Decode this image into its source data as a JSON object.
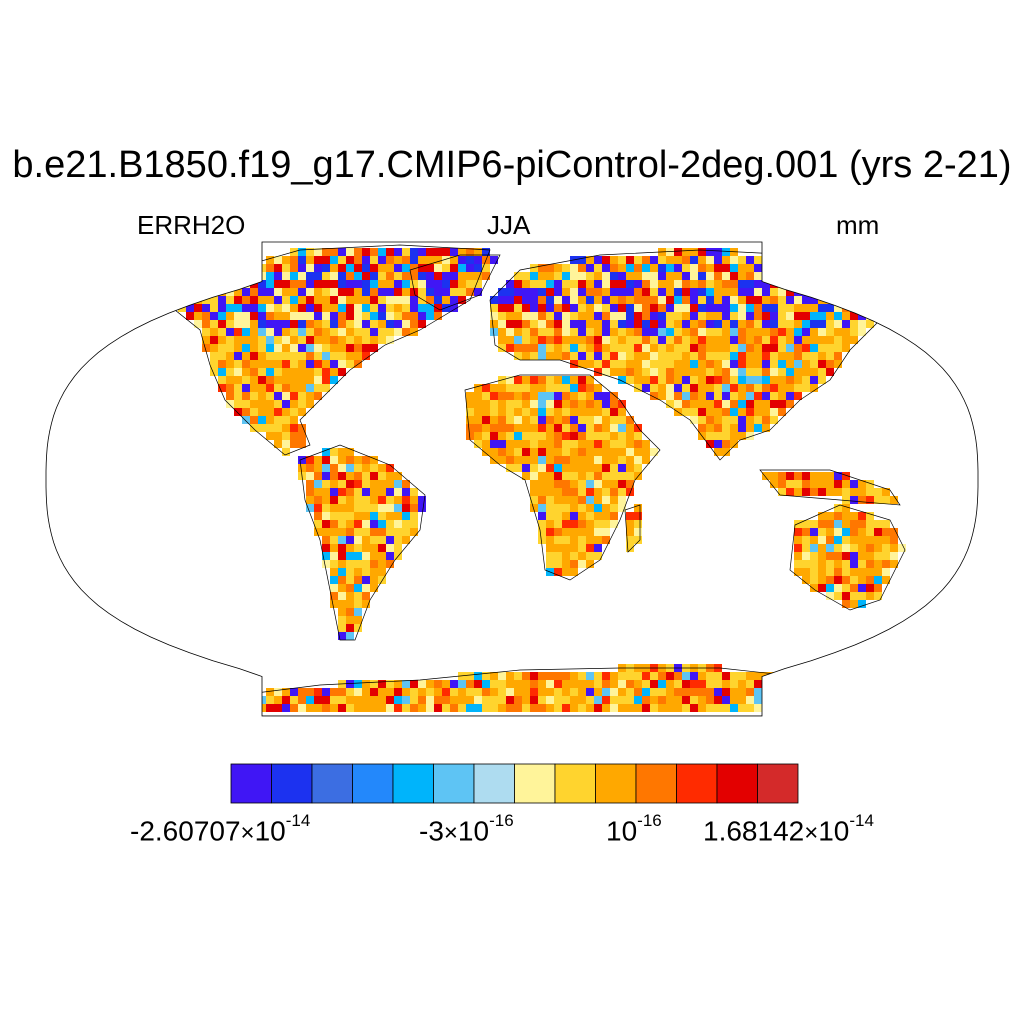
{
  "title": "b.e21.B1850.f19_g17.CMIP6-piControl-2deg.001 (yrs 2-21)",
  "variable": "ERRH2O",
  "season": "JJA",
  "units": "mm",
  "projection": "Robinson",
  "colorbar": {
    "colors": [
      "#4016f5",
      "#1c32f0",
      "#3c6ee2",
      "#2388fb",
      "#00b4fb",
      "#5ec4f4",
      "#aedcf0",
      "#fff49a",
      "#ffd42e",
      "#ffa800",
      "#ff7700",
      "#ff2b00",
      "#e30000",
      "#d42a2a"
    ],
    "labels": [
      {
        "mantissa": "-2.60707",
        "exponent": "-14"
      },
      {
        "mantissa": "-3",
        "exponent": "-16"
      },
      {
        "mantissa": "",
        "exponent": "-16"
      },
      {
        "mantissa": "1.68142",
        "exponent": "-14"
      }
    ],
    "times_sign": "×",
    "base": "10"
  }
}
